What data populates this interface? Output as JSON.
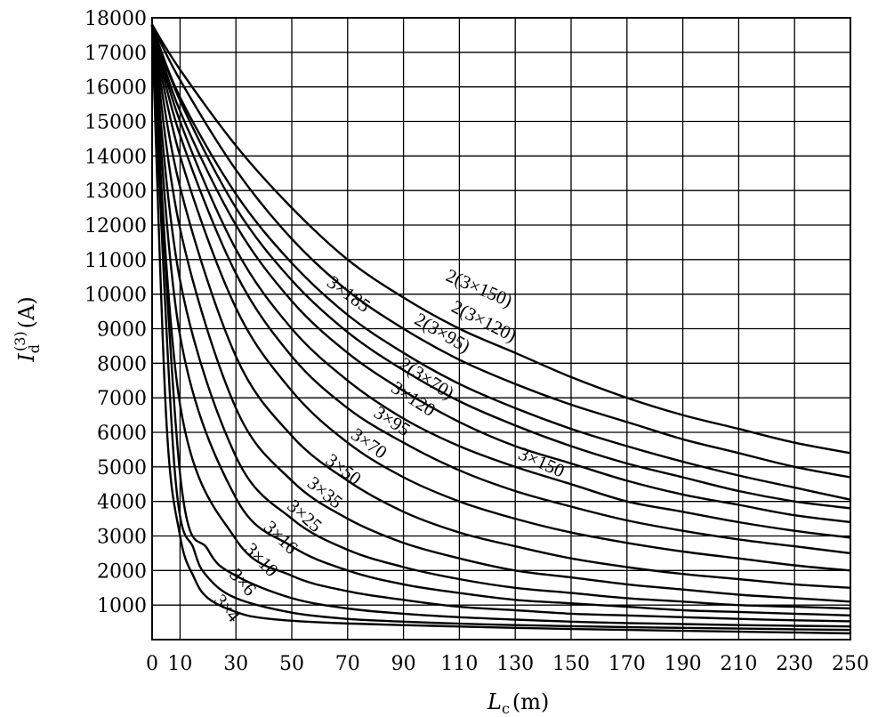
{
  "chart_data": {
    "type": "line",
    "xlabel_main": "L",
    "xlabel_sub": "c",
    "xlabel_unit": "(m)",
    "ylabel_main": "I",
    "ylabel_sub": "d",
    "ylabel_sup": "(3)",
    "ylabel_unit": "(A)",
    "xlim": [
      0,
      250
    ],
    "ylim": [
      0,
      18000
    ],
    "x_ticks": [
      0,
      10,
      30,
      50,
      70,
      90,
      110,
      130,
      150,
      170,
      190,
      210,
      230,
      250
    ],
    "y_ticks": [
      1000,
      2000,
      3000,
      4000,
      5000,
      6000,
      7000,
      8000,
      9000,
      10000,
      11000,
      12000,
      13000,
      14000,
      15000,
      16000,
      17000,
      18000
    ],
    "grid": true,
    "series": [
      {
        "name": "2(3×150)",
        "values": [
          [
            0,
            17800
          ],
          [
            10,
            16500
          ],
          [
            30,
            14300
          ],
          [
            50,
            12500
          ],
          [
            70,
            11000
          ],
          [
            90,
            9900
          ],
          [
            110,
            9000
          ],
          [
            130,
            8300
          ],
          [
            150,
            7600
          ],
          [
            170,
            7000
          ],
          [
            190,
            6500
          ],
          [
            210,
            6100
          ],
          [
            230,
            5700
          ],
          [
            250,
            5400
          ]
        ]
      },
      {
        "name": "2(3×120)",
        "values": [
          [
            0,
            17800
          ],
          [
            10,
            16200
          ],
          [
            30,
            13600
          ],
          [
            50,
            11600
          ],
          [
            70,
            10100
          ],
          [
            90,
            9000
          ],
          [
            110,
            8100
          ],
          [
            130,
            7400
          ],
          [
            150,
            6800
          ],
          [
            170,
            6300
          ],
          [
            190,
            5800
          ],
          [
            210,
            5400
          ],
          [
            230,
            5000
          ],
          [
            250,
            4700
          ]
        ]
      },
      {
        "name": "3×185",
        "values": [
          [
            0,
            17800
          ],
          [
            10,
            15700
          ],
          [
            30,
            12900
          ],
          [
            50,
            10900
          ],
          [
            70,
            9400
          ],
          [
            90,
            8300
          ],
          [
            110,
            7400
          ],
          [
            130,
            6700
          ],
          [
            150,
            6100
          ],
          [
            170,
            5600
          ],
          [
            190,
            5150
          ],
          [
            210,
            4750
          ],
          [
            230,
            4400
          ],
          [
            250,
            4050
          ]
        ]
      },
      {
        "name": "2(3×95)",
        "values": [
          [
            0,
            17800
          ],
          [
            10,
            15600
          ],
          [
            30,
            12500
          ],
          [
            50,
            10400
          ],
          [
            70,
            8900
          ],
          [
            90,
            7800
          ],
          [
            110,
            6900
          ],
          [
            130,
            6200
          ],
          [
            150,
            5600
          ],
          [
            170,
            5100
          ],
          [
            190,
            4700
          ],
          [
            210,
            4300
          ],
          [
            230,
            4000
          ],
          [
            250,
            3800
          ]
        ]
      },
      {
        "name": "3×150",
        "values": [
          [
            0,
            17800
          ],
          [
            10,
            15300
          ],
          [
            30,
            12000
          ],
          [
            50,
            9800
          ],
          [
            70,
            8300
          ],
          [
            90,
            7200
          ],
          [
            110,
            6300
          ],
          [
            130,
            5600
          ],
          [
            150,
            5100
          ],
          [
            170,
            4600
          ],
          [
            190,
            4200
          ],
          [
            210,
            3900
          ],
          [
            230,
            3600
          ],
          [
            250,
            3400
          ]
        ]
      },
      {
        "name": "2(3×70)",
        "values": [
          [
            0,
            17800
          ],
          [
            10,
            15000
          ],
          [
            30,
            11300
          ],
          [
            50,
            9000
          ],
          [
            70,
            7500
          ],
          [
            90,
            6400
          ],
          [
            110,
            5600
          ],
          [
            130,
            5000
          ],
          [
            150,
            4500
          ],
          [
            170,
            4000
          ],
          [
            190,
            3700
          ],
          [
            210,
            3400
          ],
          [
            230,
            3150
          ],
          [
            250,
            2950
          ]
        ]
      },
      {
        "name": "3×120",
        "values": [
          [
            0,
            17800
          ],
          [
            10,
            14600
          ],
          [
            30,
            10600
          ],
          [
            50,
            8200
          ],
          [
            70,
            6700
          ],
          [
            90,
            5700
          ],
          [
            110,
            4900
          ],
          [
            130,
            4300
          ],
          [
            150,
            3850
          ],
          [
            170,
            3450
          ],
          [
            190,
            3150
          ],
          [
            210,
            2900
          ],
          [
            230,
            2700
          ],
          [
            250,
            2500
          ]
        ]
      },
      {
        "name": "3×95",
        "values": [
          [
            0,
            17800
          ],
          [
            10,
            14000
          ],
          [
            30,
            9600
          ],
          [
            50,
            7200
          ],
          [
            70,
            5700
          ],
          [
            90,
            4700
          ],
          [
            110,
            4000
          ],
          [
            130,
            3500
          ],
          [
            150,
            3100
          ],
          [
            170,
            2800
          ],
          [
            190,
            2550
          ],
          [
            210,
            2350
          ],
          [
            230,
            2150
          ],
          [
            250,
            2000
          ]
        ]
      },
      {
        "name": "3×70",
        "values": [
          [
            0,
            17800
          ],
          [
            10,
            13100
          ],
          [
            30,
            8200
          ],
          [
            50,
            5900
          ],
          [
            70,
            4600
          ],
          [
            90,
            3700
          ],
          [
            110,
            3100
          ],
          [
            130,
            2700
          ],
          [
            150,
            2350
          ],
          [
            170,
            2100
          ],
          [
            190,
            1900
          ],
          [
            210,
            1750
          ],
          [
            230,
            1600
          ],
          [
            250,
            1500
          ]
        ]
      },
      {
        "name": "3×50",
        "values": [
          [
            0,
            17800
          ],
          [
            10,
            11900
          ],
          [
            30,
            6700
          ],
          [
            50,
            4600
          ],
          [
            70,
            3500
          ],
          [
            90,
            2800
          ],
          [
            110,
            2350
          ],
          [
            130,
            2000
          ],
          [
            150,
            1800
          ],
          [
            170,
            1600
          ],
          [
            190,
            1450
          ],
          [
            210,
            1300
          ],
          [
            230,
            1200
          ],
          [
            250,
            1100
          ]
        ]
      },
      {
        "name": "3×35",
        "values": [
          [
            0,
            17800
          ],
          [
            10,
            10400
          ],
          [
            30,
            5300
          ],
          [
            50,
            3500
          ],
          [
            70,
            2600
          ],
          [
            90,
            2100
          ],
          [
            110,
            1750
          ],
          [
            130,
            1500
          ],
          [
            150,
            1350
          ],
          [
            170,
            1200
          ],
          [
            190,
            1100
          ],
          [
            210,
            1000
          ],
          [
            230,
            950
          ],
          [
            250,
            900
          ]
        ]
      },
      {
        "name": "3×25",
        "values": [
          [
            0,
            17800
          ],
          [
            10,
            8800
          ],
          [
            30,
            4100
          ],
          [
            50,
            2700
          ],
          [
            70,
            2000
          ],
          [
            90,
            1600
          ],
          [
            110,
            1350
          ],
          [
            130,
            1150
          ],
          [
            150,
            1050
          ],
          [
            170,
            950
          ],
          [
            190,
            850
          ],
          [
            210,
            800
          ],
          [
            230,
            750
          ],
          [
            250,
            700
          ]
        ]
      },
      {
        "name": "3×16",
        "values": [
          [
            0,
            17800
          ],
          [
            10,
            6800
          ],
          [
            30,
            2900
          ],
          [
            50,
            1850
          ],
          [
            70,
            1400
          ],
          [
            90,
            1150
          ],
          [
            110,
            950
          ],
          [
            130,
            850
          ],
          [
            150,
            750
          ],
          [
            170,
            700
          ],
          [
            190,
            650
          ],
          [
            210,
            600
          ],
          [
            230,
            560
          ],
          [
            250,
            530
          ]
        ]
      },
      {
        "name": "3×10",
        "values": [
          [
            0,
            17800
          ],
          [
            10,
            4800
          ],
          [
            20,
            2600
          ],
          [
            30,
            1850
          ],
          [
            50,
            1200
          ],
          [
            70,
            900
          ],
          [
            90,
            750
          ],
          [
            110,
            650
          ],
          [
            130,
            580
          ],
          [
            150,
            520
          ],
          [
            170,
            480
          ],
          [
            190,
            450
          ],
          [
            210,
            420
          ],
          [
            230,
            400
          ],
          [
            250,
            380
          ]
        ]
      },
      {
        "name": "3×6",
        "values": [
          [
            0,
            17800
          ],
          [
            8,
            5000
          ],
          [
            15,
            2600
          ],
          [
            20,
            1800
          ],
          [
            30,
            1200
          ],
          [
            50,
            780
          ],
          [
            70,
            600
          ],
          [
            90,
            520
          ],
          [
            110,
            460
          ],
          [
            130,
            420
          ],
          [
            150,
            390
          ],
          [
            170,
            360
          ],
          [
            190,
            340
          ],
          [
            210,
            320
          ],
          [
            230,
            300
          ],
          [
            250,
            280
          ]
        ]
      },
      {
        "name": "3×4",
        "values": [
          [
            0,
            17800
          ],
          [
            5,
            6500
          ],
          [
            10,
            3000
          ],
          [
            15,
            1800
          ],
          [
            20,
            1200
          ],
          [
            30,
            800
          ],
          [
            40,
            620
          ],
          [
            60,
            500
          ],
          [
            90,
            420
          ],
          [
            130,
            340
          ],
          [
            170,
            280
          ],
          [
            210,
            230
          ],
          [
            250,
            180
          ]
        ]
      }
    ]
  }
}
